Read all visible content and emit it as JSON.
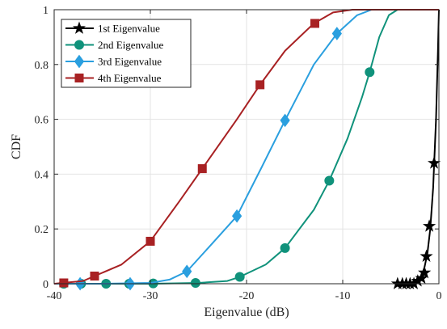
{
  "chart_data": {
    "type": "line",
    "title": "",
    "xlabel": "Eigenvalue (dB)",
    "ylabel": "CDF",
    "xlim": [
      -40,
      0
    ],
    "ylim": [
      0,
      1
    ],
    "xticks": [
      -40,
      -30,
      -20,
      -10,
      0
    ],
    "yticks": [
      0,
      0.2,
      0.4,
      0.6,
      0.8,
      1
    ],
    "xtick_labels": [
      "-40",
      "-30",
      "-20",
      "-10",
      "0"
    ],
    "ytick_labels": [
      "0",
      "0.2",
      "0.4",
      "0.6",
      "0.8",
      "1"
    ],
    "grid": true,
    "legend_position": "top-left",
    "series": [
      {
        "name": "1st Eigenvalue",
        "color": "#000000",
        "marker": "star",
        "curve": [
          [
            -4.6,
            0.0
          ],
          [
            -3.0,
            0.0
          ],
          [
            -2.2,
            0.01
          ],
          [
            -1.8,
            0.03
          ],
          [
            -1.5,
            0.06
          ],
          [
            -1.2,
            0.11
          ],
          [
            -0.9,
            0.2
          ],
          [
            -0.6,
            0.35
          ],
          [
            -0.3,
            0.6
          ],
          [
            -0.1,
            0.85
          ],
          [
            0.0,
            1.0
          ]
        ],
        "markers": [
          [
            -4.3,
            0.0
          ],
          [
            -3.8,
            0.0
          ],
          [
            -3.4,
            0.0
          ],
          [
            -3.0,
            0.0
          ],
          [
            -2.6,
            0.0
          ],
          [
            -2.2,
            0.01
          ],
          [
            -1.8,
            0.02
          ],
          [
            -1.5,
            0.04
          ],
          [
            -1.3,
            0.1
          ],
          [
            -1.0,
            0.21
          ],
          [
            -0.5,
            0.44
          ]
        ]
      },
      {
        "name": "2nd Eigenvalue",
        "color": "#10927b",
        "marker": "circle",
        "curve": [
          [
            -40,
            0.0
          ],
          [
            -30,
            0.0
          ],
          [
            -25,
            0.003
          ],
          [
            -22,
            0.01
          ],
          [
            -20.7,
            0.025
          ],
          [
            -18,
            0.07
          ],
          [
            -16,
            0.13
          ],
          [
            -13,
            0.27
          ],
          [
            -11.4,
            0.376
          ],
          [
            -9.5,
            0.53
          ],
          [
            -8,
            0.68
          ],
          [
            -7.2,
            0.772
          ],
          [
            -6.2,
            0.9
          ],
          [
            -5.2,
            0.98
          ],
          [
            -4.3,
            1.0
          ],
          [
            0,
            1.0
          ]
        ],
        "markers": [
          [
            -39.0,
            0.0
          ],
          [
            -37.2,
            0.0
          ],
          [
            -34.6,
            0.0
          ],
          [
            -32.2,
            0.0
          ],
          [
            -29.7,
            0.001
          ],
          [
            -25.3,
            0.003
          ],
          [
            -20.7,
            0.025
          ],
          [
            -16.0,
            0.13
          ],
          [
            -11.4,
            0.376
          ],
          [
            -7.2,
            0.772
          ]
        ]
      },
      {
        "name": "3rd Eigenvalue",
        "color": "#2a9fdf",
        "marker": "diamond",
        "curve": [
          [
            -40,
            0.0
          ],
          [
            -35,
            0.0
          ],
          [
            -30,
            0.003
          ],
          [
            -28,
            0.015
          ],
          [
            -26.2,
            0.045
          ],
          [
            -24,
            0.13
          ],
          [
            -21,
            0.247
          ],
          [
            -18.5,
            0.42
          ],
          [
            -16,
            0.596
          ],
          [
            -13,
            0.8
          ],
          [
            -10.6,
            0.913
          ],
          [
            -8.5,
            0.98
          ],
          [
            -7,
            1.0
          ],
          [
            0,
            1.0
          ]
        ],
        "markers": [
          [
            -37.3,
            0.0
          ],
          [
            -32.1,
            0.0
          ],
          [
            -26.2,
            0.045
          ],
          [
            -21.0,
            0.247
          ],
          [
            -16.0,
            0.596
          ],
          [
            -10.6,
            0.913
          ]
        ]
      },
      {
        "name": "4th Eigenvalue",
        "color": "#a82123",
        "marker": "square",
        "curve": [
          [
            -40,
            0.0
          ],
          [
            -37,
            0.01
          ],
          [
            -35.8,
            0.028
          ],
          [
            -33,
            0.07
          ],
          [
            -30,
            0.155
          ],
          [
            -27,
            0.3
          ],
          [
            -24.6,
            0.42
          ],
          [
            -21,
            0.6
          ],
          [
            -18.6,
            0.726
          ],
          [
            -16,
            0.85
          ],
          [
            -13,
            0.95
          ],
          [
            -11,
            0.99
          ],
          [
            -9,
            1.0
          ],
          [
            0,
            1.0
          ]
        ],
        "markers": [
          [
            -39.0,
            0.003
          ],
          [
            -35.8,
            0.028
          ],
          [
            -30.0,
            0.155
          ],
          [
            -24.6,
            0.42
          ],
          [
            -18.6,
            0.726
          ],
          [
            -12.9,
            0.95
          ]
        ]
      }
    ]
  }
}
